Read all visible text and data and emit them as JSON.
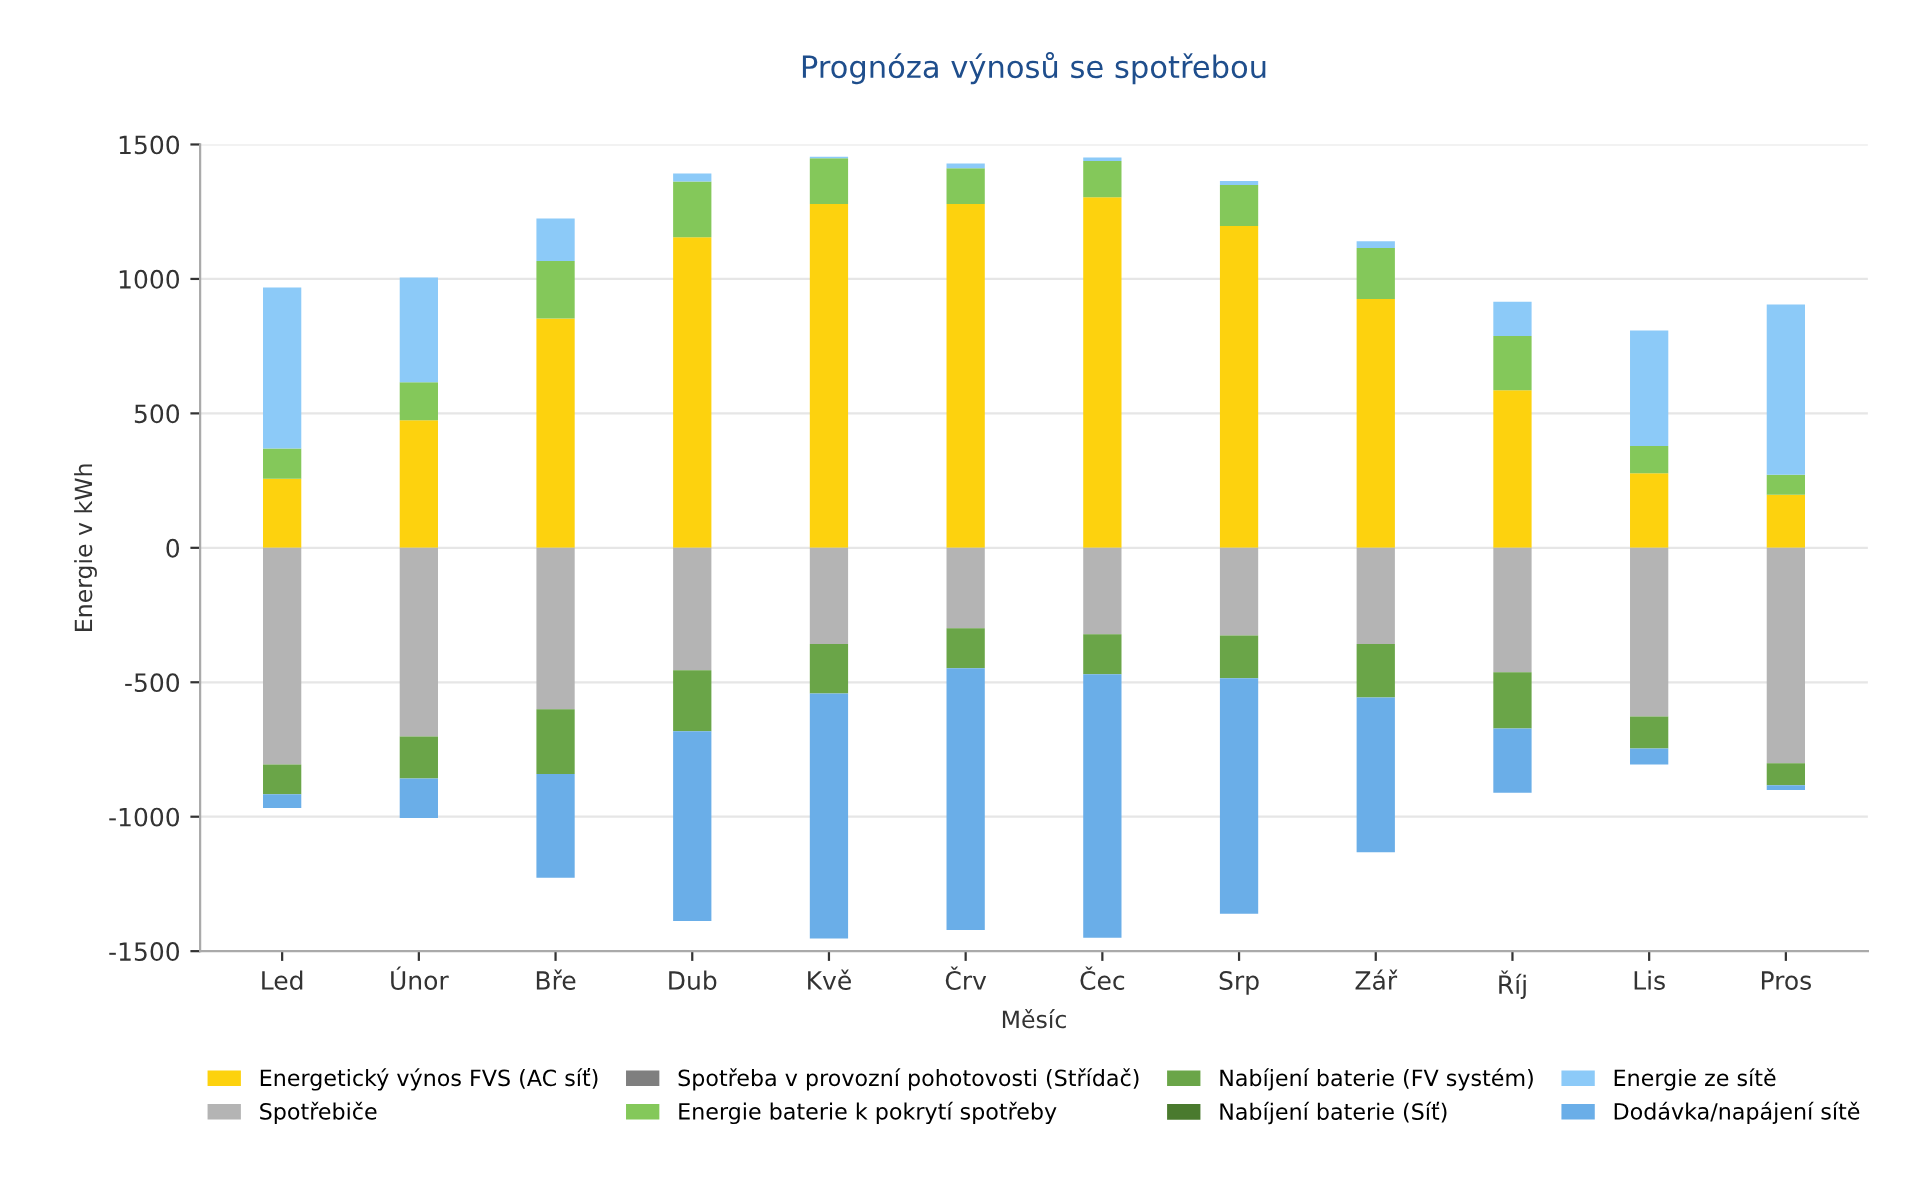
{
  "chart_data": {
    "type": "bar",
    "stacked": true,
    "title": "Prognóza výnosů se spotřebou",
    "xlabel": "Měsíc",
    "ylabel": "Energie v kWh",
    "categories": [
      "Led",
      "Únor",
      "Bře",
      "Dub",
      "Kvě",
      "Črv",
      "Čec",
      "Srp",
      "Zář",
      "Říj",
      "Lis",
      "Pros"
    ],
    "series": [
      {
        "name": "Energetický výnos FVS (AC síť)",
        "color": "#fdd20e",
        "values": [
          257,
          474,
          853,
          1155,
          1279,
          1279,
          1304,
          1197,
          925,
          586,
          277,
          197
        ]
      },
      {
        "name": "Spotřebiče",
        "color": "#b4b4b4",
        "values": [
          -806,
          -702,
          -600,
          -455,
          -358,
          -299,
          -321,
          -326,
          -358,
          -463,
          -627,
          -801
        ]
      },
      {
        "name": "Spotřeba v provozní pohotovosti (Střídač)",
        "color": "#7f7f7f",
        "values": [
          null,
          null,
          null,
          null,
          null,
          null,
          null,
          null,
          null,
          null,
          null,
          null
        ]
      },
      {
        "name": "Energie baterie k pokrytí spotřeby",
        "color": "#84c85a",
        "values": [
          112,
          142,
          214,
          207,
          170,
          133,
          135,
          152,
          190,
          202,
          102,
          75
        ]
      },
      {
        "name": "Nabíjení baterie (FV systém)",
        "color": "#6aa548",
        "values": [
          -110,
          -156,
          -241,
          -227,
          -184,
          -149,
          -149,
          -159,
          -199,
          -209,
          -119,
          -82
        ]
      },
      {
        "name": "Nabíjení baterie (Síť)",
        "color": "#4a7a2e",
        "values": [
          null,
          null,
          null,
          null,
          null,
          null,
          null,
          null,
          null,
          null,
          null,
          null
        ]
      },
      {
        "name": "Energie ze sítě",
        "color": "#8ccaf8",
        "values": [
          599,
          389,
          158,
          30,
          5,
          17,
          13,
          15,
          25,
          127,
          429,
          633
        ]
      },
      {
        "name": "Dodávka/napájení sítě",
        "color": "#6aaee8",
        "values": [
          -52,
          -147,
          -386,
          -706,
          -911,
          -973,
          -980,
          -876,
          -575,
          -239,
          -60,
          -18
        ]
      }
    ],
    "ylim": [
      -1500,
      1500
    ],
    "yticks": [
      -1500,
      -1000,
      -500,
      0,
      500,
      1000,
      1500
    ],
    "grid": "y",
    "legend": "bottom"
  }
}
